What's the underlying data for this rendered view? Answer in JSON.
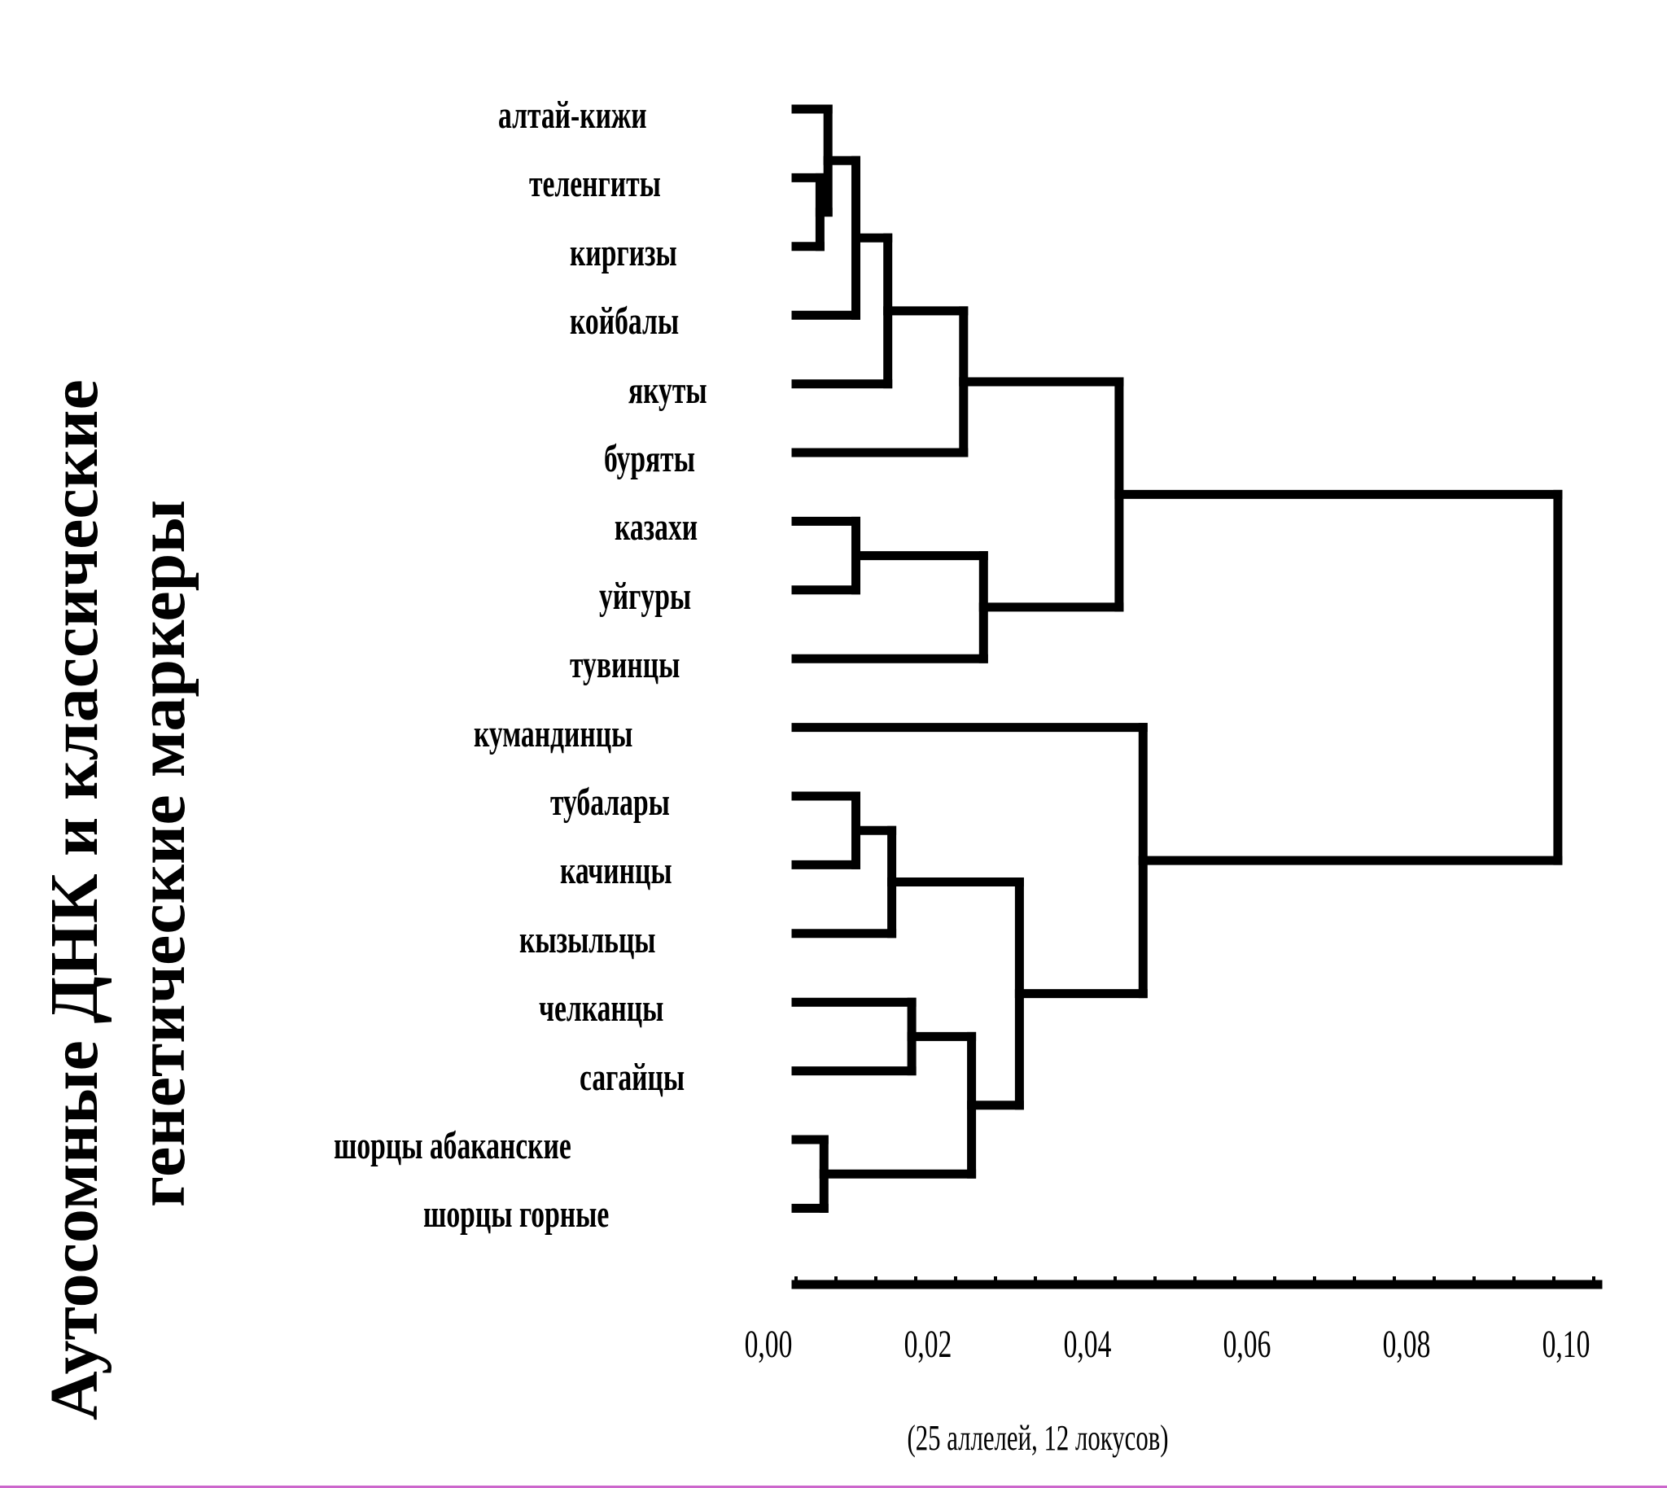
{
  "title": {
    "line1": "Аутосомные ДНК и класcичеcкие",
    "line2": "генетические маркеры"
  },
  "leaves": [
    "алтай-кижи",
    "теленгиты",
    "киргизы",
    "койбалы",
    "якуты",
    "буряты",
    "казахи",
    "уйгуры",
    "тувинцы",
    "кумандинцы",
    "тубалары",
    "качинцы",
    "кызыльцы",
    "челканцы",
    "сагайцы",
    "шорцы абаканские",
    "шорцы горные"
  ],
  "scale": {
    "ticks": [
      "0,00",
      "0,02",
      "0,04",
      "0,06",
      "0,08",
      "0,10"
    ],
    "note": "(25 аллелей, 12 локусов)"
  },
  "chart_data": {
    "type": "dendrogram",
    "scale_range": [
      0,
      0.1
    ],
    "merges": [
      {
        "members": [
          "теленгиты",
          "киргизы"
        ],
        "height": 0.003
      },
      {
        "members": [
          "алтай-кижи",
          "теленгиты+киргизы"
        ],
        "height": 0.004
      },
      {
        "members": [
          "алтай-кижи+теленгиты+киргизы",
          "койбалы"
        ],
        "height": 0.0075
      },
      {
        "members": [
          "…+койбалы",
          "якуты"
        ],
        "height": 0.0115
      },
      {
        "members": [
          "…+якуты",
          "буряты"
        ],
        "height": 0.021
      },
      {
        "members": [
          "казахи",
          "уйгуры"
        ],
        "height": 0.0075
      },
      {
        "members": [
          "казахи+уйгуры",
          "тувинцы"
        ],
        "height": 0.0235
      },
      {
        "members": [
          "cluster-A",
          "cluster-B"
        ],
        "height": 0.0405
      },
      {
        "members": [
          "тубалары",
          "качинцы"
        ],
        "height": 0.0075
      },
      {
        "members": [
          "тубалары+качинцы",
          "кызыльцы"
        ],
        "height": 0.012
      },
      {
        "members": [
          "челканцы",
          "сагайцы"
        ],
        "height": 0.0145
      },
      {
        "members": [
          "шорцы абаканские",
          "шорцы горные"
        ],
        "height": 0.0035
      },
      {
        "members": [
          "челканцы+сагайцы",
          "шорцы"
        ],
        "height": 0.022
      },
      {
        "members": [
          "cluster-C",
          "cluster-D"
        ],
        "height": 0.028
      },
      {
        "members": [
          "кумандинцы",
          "…"
        ],
        "height": 0.0435
      },
      {
        "members": [
          "upper-cluster",
          "lower-cluster"
        ],
        "height": 0.0955
      }
    ]
  }
}
